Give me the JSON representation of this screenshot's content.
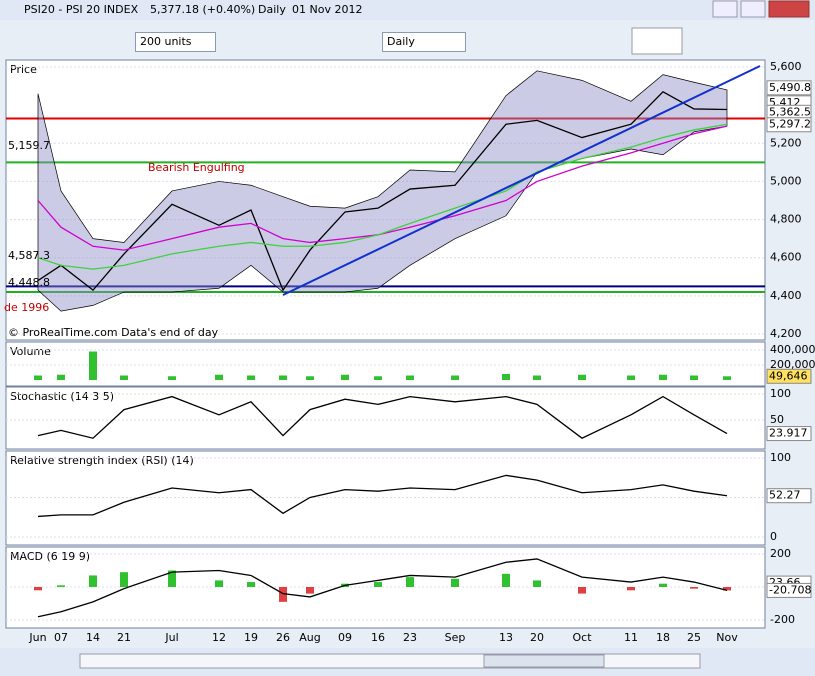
{
  "window": {
    "symbol": "PSI20 - PSI 20 INDEX",
    "last": "5,377.18 (+0.40%)",
    "period": "Daily",
    "date": "01 Nov 2012"
  },
  "toolbar": {
    "units": "200 units",
    "period": "Daily"
  },
  "x_axis": {
    "labels": [
      "Jun",
      "07",
      "14",
      "21",
      "Jul",
      "12",
      "19",
      "26",
      "Aug",
      "09",
      "16",
      "23",
      "Sep",
      "13",
      "20",
      "Oct",
      "11",
      "18",
      "25",
      "Nov"
    ]
  },
  "panels": [
    {
      "title": "Price",
      "ylim": [
        4200,
        5600
      ],
      "yticks": [
        {
          "value": 5600,
          "label": "5,600"
        },
        {
          "value": 5200,
          "label": "5,200"
        },
        {
          "value": 5000,
          "label": "5,000"
        },
        {
          "value": 4800,
          "label": "4,800"
        },
        {
          "value": 4600,
          "label": "4,600"
        },
        {
          "value": 4400,
          "label": "4,400"
        },
        {
          "value": 4200,
          "label": "4,200"
        }
      ],
      "series": [
        {
          "kind": "band",
          "color": "#8c8cc8",
          "upper": [
            5460,
            4950,
            4700,
            4680,
            4950,
            5000,
            4980,
            4920,
            4870,
            4860,
            4920,
            5060,
            5050,
            5450,
            5580,
            5530,
            5420,
            5560,
            5520,
            5480
          ],
          "lower": [
            4430,
            4320,
            4350,
            4420,
            4420,
            4440,
            4560,
            4420,
            4420,
            4420,
            4440,
            4560,
            4700,
            4820,
            5050,
            5120,
            5170,
            5140,
            5260,
            5290
          ]
        },
        {
          "kind": "line",
          "color": "#000000",
          "values": [
            4480,
            4560,
            4430,
            4620,
            4880,
            4770,
            4850,
            4430,
            4640,
            4840,
            4860,
            4960,
            4980,
            5300,
            5320,
            5230,
            5300,
            5470,
            5380,
            5377
          ]
        },
        {
          "kind": "line",
          "color": "#d000d0",
          "values": [
            4900,
            4760,
            4660,
            4640,
            4700,
            4760,
            4780,
            4700,
            4680,
            4700,
            4720,
            4760,
            4820,
            4900,
            5000,
            5080,
            5150,
            5200,
            5250,
            5290
          ]
        },
        {
          "kind": "line",
          "color": "#40d040",
          "values": [
            4600,
            4560,
            4540,
            4560,
            4620,
            4660,
            4680,
            4660,
            4660,
            4680,
            4720,
            4780,
            4860,
            4950,
            5050,
            5120,
            5180,
            5230,
            5270,
            5300
          ]
        }
      ],
      "levels": [
        {
          "value": 5330,
          "color": "#e00000"
        },
        {
          "value": 5100,
          "color": "#20b020"
        },
        {
          "value": 4450,
          "color": "#000080"
        },
        {
          "value": 4420,
          "color": "#20b020"
        }
      ],
      "annotations": [
        "Bearish Engulfing",
        "5,159.7",
        "4,587.3",
        "4,448.8",
        "de 1996",
        "© ProRealTime.com Data's end of day"
      ],
      "value_labels": [
        {
          "value": 5490.8,
          "label": "5,490.8"
        },
        {
          "value": 5412,
          "label": "5,412"
        },
        {
          "value": 5362.5,
          "label": "5,362.5"
        },
        {
          "value": 5297.2,
          "label": "5,297.2"
        }
      ]
    },
    {
      "title": "Volume",
      "ylim": [
        0,
        400000
      ],
      "yticks": [
        {
          "value": 400000,
          "label": "400,000"
        },
        {
          "value": 200000,
          "label": "200,000"
        }
      ],
      "series": [
        {
          "kind": "bar",
          "color": "#30c030",
          "values": [
            60000,
            70000,
            380000,
            60000,
            50000,
            70000,
            60000,
            60000,
            50000,
            70000,
            50000,
            60000,
            60000,
            80000,
            60000,
            70000,
            60000,
            70000,
            60000,
            49646
          ]
        }
      ],
      "value_labels": [
        {
          "value": 49646,
          "label": "49,646"
        }
      ]
    },
    {
      "title": "Stochastic (14 3 5)",
      "ylim": [
        0,
        100
      ],
      "yticks": [
        100,
        50
      ],
      "series": [
        {
          "kind": "line",
          "color": "#000000",
          "values": [
            20,
            30,
            15,
            70,
            95,
            60,
            85,
            20,
            70,
            90,
            80,
            95,
            85,
            95,
            80,
            15,
            60,
            95,
            60,
            23.917
          ]
        }
      ],
      "value_labels": [
        {
          "value": 23.917,
          "label": "23.917"
        }
      ]
    },
    {
      "title": "Relative strength index (RSI) (14)",
      "ylim": [
        0,
        100
      ],
      "yticks": [
        100,
        50,
        0
      ],
      "series": [
        {
          "kind": "line",
          "color": "#000000",
          "values": [
            26,
            28,
            28,
            44,
            62,
            56,
            60,
            30,
            50,
            60,
            58,
            62,
            60,
            78,
            72,
            56,
            60,
            66,
            58,
            52.27
          ]
        }
      ],
      "value_labels": [
        {
          "value": 52.27,
          "label": "52.27"
        }
      ]
    },
    {
      "title": "MACD (6 19 9)",
      "ylim": [
        -200,
        200
      ],
      "yticks": [
        200,
        0,
        -200
      ],
      "series": [
        {
          "kind": "bar",
          "color": "#30c030",
          "values": [
            -20,
            10,
            70,
            90,
            100,
            40,
            30,
            -90,
            -40,
            20,
            30,
            60,
            50,
            80,
            40,
            -40,
            -20,
            20,
            -10,
            -20.708
          ]
        },
        {
          "kind": "line",
          "color": "#000000",
          "values": [
            -180,
            -150,
            -90,
            -10,
            90,
            100,
            70,
            -40,
            -60,
            10,
            40,
            70,
            60,
            150,
            170,
            60,
            30,
            60,
            30,
            -20.708
          ]
        }
      ],
      "value_labels": [
        {
          "value": 23.66,
          "label": "23.66"
        },
        {
          "value": -20.708,
          "label": "-20.708"
        }
      ]
    }
  ]
}
